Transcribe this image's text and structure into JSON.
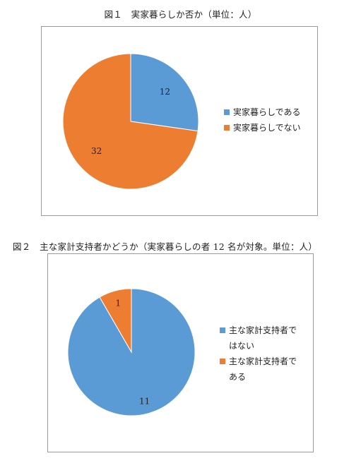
{
  "figure1": {
    "title": "図１　実家暮らしか否か（単位：人）",
    "legend": [
      {
        "label": "実家暮らしである",
        "color": "#5b9bd5"
      },
      {
        "label": "実家暮らしでない",
        "color": "#ed7d31"
      }
    ]
  },
  "figure2": {
    "title": "図２　主な家計支持者かどうか（実家暮らしの者 12 名が対象。単位：人）",
    "legend": [
      {
        "label": "主な家計支持者で",
        "label_cont": "はない",
        "color": "#5b9bd5"
      },
      {
        "label": "主な家計支持者で",
        "label_cont": "ある",
        "color": "#ed7d31"
      }
    ]
  },
  "chart_data": [
    {
      "type": "pie",
      "title": "図１　実家暮らしか否か（単位：人）",
      "categories": [
        "実家暮らしである",
        "実家暮らしでない"
      ],
      "values": [
        12,
        32
      ],
      "colors": [
        "#5b9bd5",
        "#ed7d31"
      ],
      "legend_position": "right"
    },
    {
      "type": "pie",
      "title": "図２　主な家計支持者かどうか（実家暮らしの者 12 名が対象。単位：人）",
      "categories": [
        "主な家計支持者ではない",
        "主な家計支持者である"
      ],
      "values": [
        11,
        1
      ],
      "colors": [
        "#5b9bd5",
        "#ed7d31"
      ],
      "legend_position": "right"
    }
  ]
}
